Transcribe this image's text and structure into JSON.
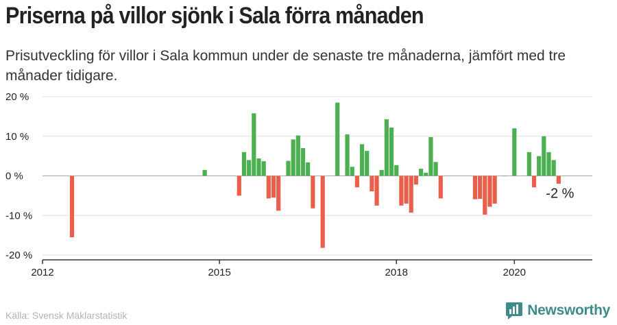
{
  "header": {
    "title": "Priserna på villor sjönk i Sala förra månaden",
    "subtitle": "Prisutveckling för villor i Sala kommun under de senaste tre månaderna, jämfört med tre månader tidigare."
  },
  "footer": {
    "source": "Källa: Svensk Mäklarstatistik",
    "brand": "Newsworthy"
  },
  "colors": {
    "positive": "#4caf50",
    "negative": "#e8604c",
    "grid": "#dddddd",
    "axis": "#333333",
    "brand": "#3d8b8b"
  },
  "chart_data": {
    "type": "bar",
    "title": "",
    "xlabel": "",
    "ylabel": "",
    "y_ticks": [
      "20 %",
      "10 %",
      "0 %",
      "-10 %",
      "-20 %"
    ],
    "y_tick_values": [
      20,
      10,
      0,
      -10,
      -20
    ],
    "ylim": [
      -20,
      20
    ],
    "x_ticks": [
      "2012",
      "2015",
      "2018",
      "2020"
    ],
    "grid": true,
    "annotation": "-2 %",
    "series": [
      {
        "values": [
          [
            "2012-07",
            -15.5
          ],
          [
            "2014-10",
            1.5
          ],
          [
            "2015-05",
            -5
          ],
          [
            "2015-06",
            6
          ],
          [
            "2015-07",
            4
          ],
          [
            "2015-08",
            15.8
          ],
          [
            "2015-09",
            4.4
          ],
          [
            "2015-10",
            3.7
          ],
          [
            "2015-11",
            -5.7
          ],
          [
            "2015-12",
            -5.5
          ],
          [
            "2016-01",
            -8.8
          ],
          [
            "2016-03",
            3.8
          ],
          [
            "2016-04",
            9.2
          ],
          [
            "2016-05",
            10.2
          ],
          [
            "2016-06",
            7
          ],
          [
            "2016-07",
            3.4
          ],
          [
            "2016-08",
            -8.2
          ],
          [
            "2016-10",
            -18.2
          ],
          [
            "2017-01",
            18.5
          ],
          [
            "2017-03",
            10.5
          ],
          [
            "2017-04",
            2.3
          ],
          [
            "2017-05",
            -2.9
          ],
          [
            "2017-06",
            8
          ],
          [
            "2017-07",
            6.3
          ],
          [
            "2017-08",
            -3.9
          ],
          [
            "2017-09",
            -7.5
          ],
          [
            "2017-10",
            1.5
          ],
          [
            "2017-11",
            14.3
          ],
          [
            "2017-12",
            12.2
          ],
          [
            "2018-01",
            2.7
          ],
          [
            "2018-02",
            -7.5
          ],
          [
            "2018-03",
            -7
          ],
          [
            "2018-04",
            -9.3
          ],
          [
            "2018-05",
            -2.2
          ],
          [
            "2018-06",
            1.8
          ],
          [
            "2018-07",
            0.8
          ],
          [
            "2018-08",
            9.8
          ],
          [
            "2018-09",
            3.5
          ],
          [
            "2018-10",
            -5.7
          ],
          [
            "2019-05",
            -5.9
          ],
          [
            "2019-06",
            -5.8
          ],
          [
            "2019-07",
            -9.8
          ],
          [
            "2019-08",
            -7.8
          ],
          [
            "2019-09",
            -7
          ],
          [
            "2019-11",
            0
          ],
          [
            "2020-01",
            12
          ],
          [
            "2020-04",
            6
          ],
          [
            "2020-05",
            -2.9
          ],
          [
            "2020-06",
            5
          ],
          [
            "2020-07",
            10
          ],
          [
            "2020-08",
            6
          ],
          [
            "2020-09",
            4
          ],
          [
            "2020-10",
            -2
          ]
        ]
      }
    ]
  }
}
